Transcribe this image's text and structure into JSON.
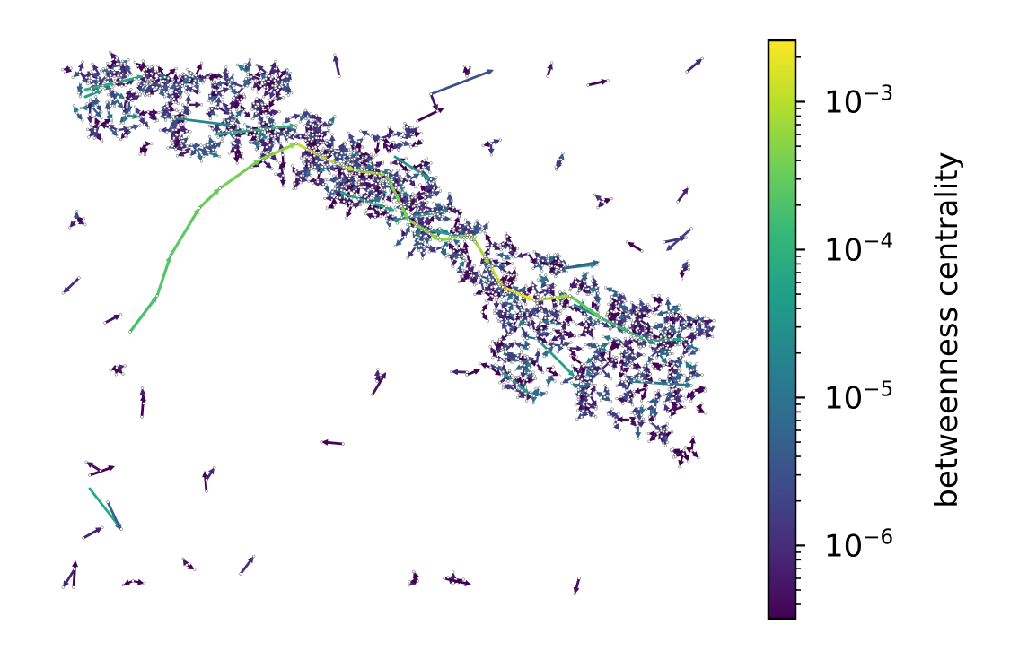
{
  "chart_data": {
    "type": "graph",
    "colormap": "viridis",
    "colormap_stops": [
      "#440154",
      "#482878",
      "#3e4989",
      "#31688e",
      "#26828e",
      "#1f9e89",
      "#35b779",
      "#6ece58",
      "#b5de2b",
      "#fde725"
    ],
    "node_color": "#ffffff",
    "node_edge_color": "#555555",
    "colorbar": {
      "label": "betweenness centrality",
      "scale": "log",
      "range": [
        3.2e-07,
        0.0026
      ],
      "ticks": [
        {
          "value": 0.001,
          "base": "10",
          "exp": "−3"
        },
        {
          "value": 0.0001,
          "base": "10",
          "exp": "−4"
        },
        {
          "value": 1e-05,
          "base": "10",
          "exp": "−5"
        },
        {
          "value": 1e-06,
          "base": "10",
          "exp": "−6"
        }
      ]
    }
  }
}
